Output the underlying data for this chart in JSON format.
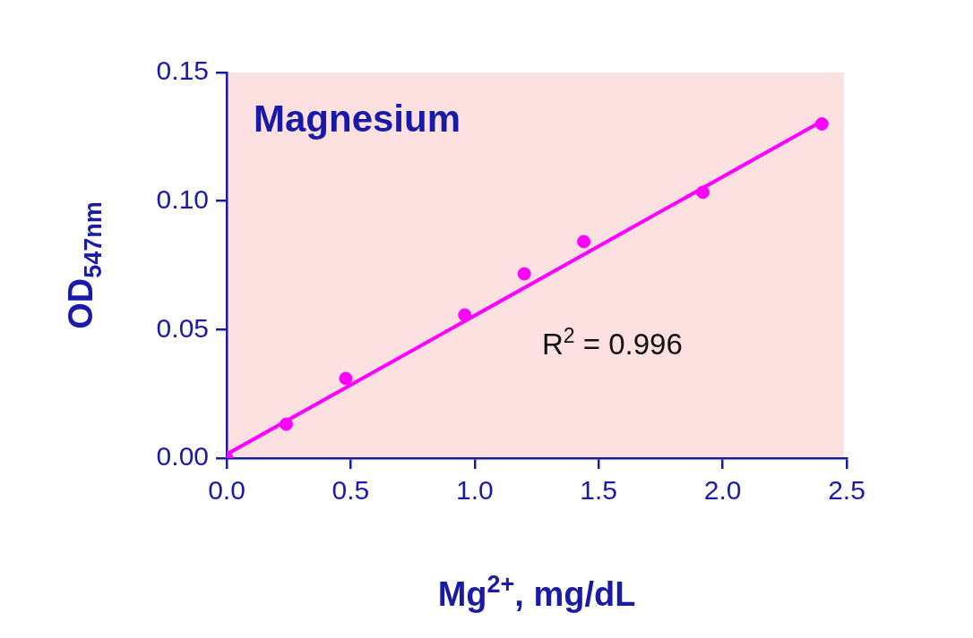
{
  "chart_data": {
    "type": "scatter",
    "title": "Magnesium",
    "xlabel": "Mg$^{2+}$, mg/dL",
    "ylabel": "OD$_{547nm}$",
    "annotations": [
      "R$^{2}$ = 0.996"
    ],
    "series": [
      {
        "color": "#ff00ff",
        "x": [
          0,
          0.24,
          0.48,
          0.96,
          1.2,
          1.44,
          1.92,
          2.4
        ],
        "values": [
          0,
          0.0132,
          0.031,
          0.0557,
          0.0717,
          0.0842,
          0.1034,
          0.13
        ]
      },
      {
        "type": "line",
        "marker": "none",
        "color": "#ff00ff",
        "x": [
          0,
          2.4
        ],
        "values": [
          0.0015,
          0.131
        ]
      }
    ],
    "marker": "circle",
    "grid": false,
    "legend": false,
    "xlim": [
      0,
      2.5
    ],
    "xticks": [
      {
        "value": 0,
        "label": "0.0"
      },
      {
        "value": 0.5,
        "label": "0.5"
      },
      {
        "value": 1,
        "label": "1.0"
      },
      {
        "value": 1.5,
        "label": "1.5"
      },
      {
        "value": 2,
        "label": "2.0"
      },
      {
        "value": 2.5,
        "label": "2.5"
      }
    ],
    "ylim": [
      0,
      0.15
    ],
    "yticks": [
      {
        "value": 0,
        "label": "0.00"
      },
      {
        "value": 0.05,
        "label": "0.05"
      },
      {
        "value": 0.1,
        "label": "0.10"
      },
      {
        "value": 0.15,
        "label": "0.15"
      }
    ]
  }
}
